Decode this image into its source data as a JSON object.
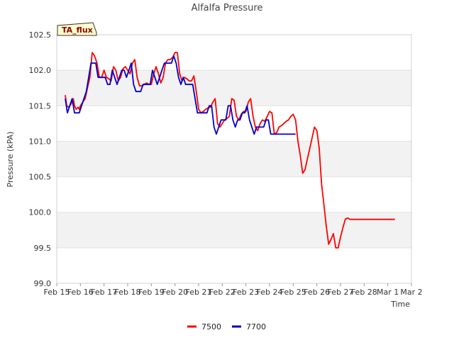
{
  "chart_data": {
    "type": "line",
    "title": "Alfalfa Pressure",
    "xlabel": "Time",
    "ylabel": "Pressure (kPA)",
    "badge": "TA_flux",
    "ylim": [
      99.0,
      102.5
    ],
    "yticks": [
      99.0,
      99.5,
      100.0,
      100.5,
      101.0,
      101.5,
      102.0,
      102.5
    ],
    "ytick_labels": [
      "99.0",
      "99.5",
      "100.0",
      "100.5",
      "101.0",
      "101.5",
      "102.0",
      "102.5"
    ],
    "xlim": [
      0,
      15
    ],
    "xticks": [
      0,
      1,
      2,
      3,
      4,
      5,
      6,
      7,
      8,
      9,
      10,
      11,
      12,
      13,
      14,
      15
    ],
    "xtick_labels": [
      "Feb 15",
      "Feb 16",
      "Feb 17",
      "Feb 18",
      "Feb 19",
      "Feb 20",
      "Feb 21",
      "Feb 22",
      "Feb 23",
      "Feb 24",
      "Feb 25",
      "Feb 26",
      "Feb 27",
      "Feb 28",
      "Mar 1",
      "Mar 2"
    ],
    "grid": "horizontal alternating bands",
    "legend_position": "bottom-center",
    "series": [
      {
        "name": "7500",
        "color": "#ff0000",
        "x": [
          0.36,
          0.42,
          0.5,
          0.6,
          0.7,
          0.75,
          0.82,
          0.9,
          0.95,
          1.0,
          1.1,
          1.2,
          1.3,
          1.4,
          1.5,
          1.6,
          1.7,
          1.8,
          1.9,
          1.95,
          2.0,
          2.1,
          2.2,
          2.3,
          2.4,
          2.5,
          2.6,
          2.7,
          2.8,
          2.9,
          3.0,
          3.1,
          3.2,
          3.3,
          3.4,
          3.5,
          3.6,
          3.7,
          3.8,
          3.9,
          4.0,
          4.1,
          4.2,
          4.3,
          4.4,
          4.5,
          4.6,
          4.7,
          4.8,
          4.9,
          5.0,
          5.1,
          5.2,
          5.3,
          5.4,
          5.5,
          5.6,
          5.7,
          5.8,
          5.9,
          6.0,
          6.1,
          6.2,
          6.3,
          6.4,
          6.5,
          6.6,
          6.7,
          6.8,
          6.9,
          7.0,
          7.1,
          7.2,
          7.3,
          7.4,
          7.5,
          7.6,
          7.7,
          7.8,
          7.9,
          8.0,
          8.1,
          8.2,
          8.3,
          8.4,
          8.5,
          8.6,
          8.7,
          8.8,
          8.9,
          9.0,
          9.1,
          9.2,
          9.3,
          9.4,
          9.5,
          9.6,
          9.7,
          9.8,
          9.9,
          10.0,
          10.1,
          10.2,
          10.3,
          10.4,
          10.5,
          10.6,
          10.7,
          10.8,
          10.9,
          11.0,
          11.1,
          11.2,
          11.3,
          11.4,
          11.5,
          11.6,
          11.7,
          11.8,
          11.9,
          12.0,
          12.1,
          12.2,
          12.3,
          12.4,
          12.5,
          12.6,
          12.7,
          12.8,
          12.9,
          13.0,
          13.1,
          13.2,
          13.3,
          13.4,
          13.5,
          13.6,
          13.7,
          13.8,
          13.9,
          14.0,
          14.1,
          14.2,
          14.3
        ],
        "y": [
          101.65,
          101.5,
          101.48,
          101.52,
          101.6,
          101.5,
          101.45,
          101.48,
          101.45,
          101.5,
          101.55,
          101.6,
          101.75,
          101.9,
          102.25,
          102.2,
          102.1,
          101.9,
          101.9,
          101.95,
          102.0,
          101.9,
          101.88,
          101.85,
          102.05,
          102.0,
          101.85,
          101.9,
          102.02,
          102.05,
          102.0,
          101.95,
          102.1,
          102.15,
          101.9,
          101.78,
          101.78,
          101.8,
          101.82,
          101.8,
          101.8,
          101.95,
          102.05,
          101.95,
          101.82,
          101.9,
          102.1,
          102.15,
          102.15,
          102.18,
          102.25,
          102.25,
          101.95,
          101.85,
          101.9,
          101.88,
          101.85,
          101.85,
          101.92,
          101.7,
          101.45,
          101.4,
          101.42,
          101.45,
          101.47,
          101.48,
          101.55,
          101.6,
          101.25,
          101.2,
          101.25,
          101.3,
          101.32,
          101.35,
          101.6,
          101.58,
          101.35,
          101.3,
          101.38,
          101.42,
          101.42,
          101.55,
          101.6,
          101.35,
          101.2,
          101.15,
          101.25,
          101.3,
          101.28,
          101.35,
          101.42,
          101.4,
          101.1,
          101.12,
          101.2,
          101.22,
          101.25,
          101.28,
          101.3,
          101.35,
          101.38,
          101.3,
          101.0,
          100.8,
          100.55,
          100.6,
          100.75,
          100.9,
          101.05,
          101.2,
          101.15,
          100.9,
          100.4,
          100.1,
          99.8,
          99.55,
          99.62,
          99.7,
          99.5,
          99.5,
          99.65,
          99.78,
          99.9,
          99.92,
          99.9,
          99.9,
          99.9,
          99.9,
          99.9,
          99.9,
          99.9,
          99.9,
          99.9,
          99.9,
          99.9,
          99.9,
          99.9,
          99.9,
          99.9,
          99.9,
          99.9,
          99.9,
          99.9,
          99.9
        ]
      },
      {
        "name": "7700",
        "color": "#0000cc",
        "x": [
          0.36,
          0.45,
          0.55,
          0.65,
          0.75,
          0.85,
          0.95,
          1.05,
          1.15,
          1.25,
          1.35,
          1.45,
          1.55,
          1.65,
          1.75,
          1.85,
          1.95,
          2.05,
          2.15,
          2.25,
          2.35,
          2.45,
          2.55,
          2.65,
          2.75,
          2.85,
          2.95,
          3.05,
          3.15,
          3.25,
          3.35,
          3.45,
          3.55,
          3.65,
          3.75,
          3.85,
          3.95,
          4.05,
          4.15,
          4.25,
          4.35,
          4.45,
          4.55,
          4.65,
          4.75,
          4.85,
          4.95,
          5.05,
          5.15,
          5.25,
          5.35,
          5.45,
          5.55,
          5.65,
          5.75,
          5.85,
          5.95,
          6.05,
          6.15,
          6.25,
          6.35,
          6.45,
          6.55,
          6.65,
          6.75,
          6.85,
          6.95,
          7.05,
          7.15,
          7.25,
          7.35,
          7.45,
          7.55,
          7.65,
          7.75,
          7.85,
          7.95,
          8.05,
          8.15,
          8.25,
          8.35,
          8.45,
          8.55,
          8.65,
          8.75,
          8.85,
          8.95,
          9.05,
          9.15,
          9.25,
          9.35,
          9.45,
          9.55,
          9.65,
          9.75,
          9.85,
          9.95,
          10.05,
          10.1
        ],
        "y": [
          101.6,
          101.4,
          101.5,
          101.6,
          101.4,
          101.4,
          101.4,
          101.5,
          101.6,
          101.7,
          101.9,
          102.1,
          102.1,
          102.1,
          101.9,
          101.9,
          101.9,
          101.9,
          101.8,
          101.8,
          102.0,
          101.9,
          101.8,
          101.9,
          102.0,
          102.0,
          101.9,
          102.0,
          102.1,
          101.8,
          101.7,
          101.7,
          101.7,
          101.8,
          101.8,
          101.8,
          101.8,
          102.0,
          101.9,
          101.8,
          101.9,
          102.0,
          102.1,
          102.1,
          102.1,
          102.1,
          102.2,
          102.1,
          101.9,
          101.8,
          101.9,
          101.8,
          101.8,
          101.8,
          101.8,
          101.6,
          101.4,
          101.4,
          101.4,
          101.4,
          101.4,
          101.5,
          101.5,
          101.2,
          101.1,
          101.2,
          101.3,
          101.3,
          101.3,
          101.5,
          101.5,
          101.3,
          101.2,
          101.3,
          101.3,
          101.4,
          101.4,
          101.5,
          101.3,
          101.2,
          101.1,
          101.2,
          101.2,
          101.2,
          101.2,
          101.3,
          101.3,
          101.1,
          101.1,
          101.1,
          101.1,
          101.1,
          101.1,
          101.1,
          101.1,
          101.1,
          101.1,
          101.1,
          101.1
        ]
      }
    ]
  }
}
